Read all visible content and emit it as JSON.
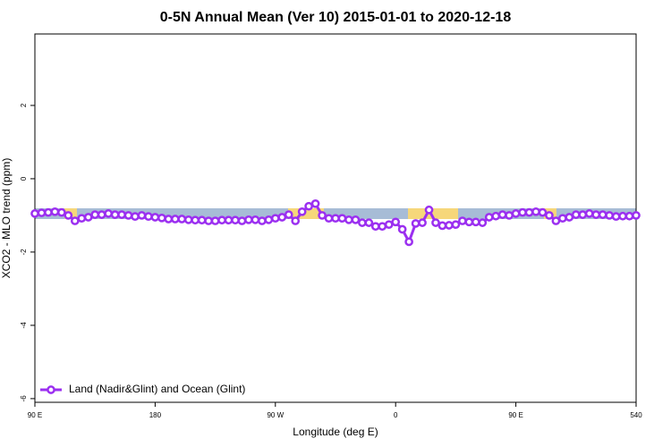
{
  "chart_data": {
    "type": "line",
    "title": "0-5N Annual Mean (Ver 10)   2015-01-01 to 2020-12-18",
    "x_label": "Longitude (deg E)",
    "y_label": "XCO2 - MLO trend (ppm)",
    "x": [
      90,
      95,
      100,
      105,
      110,
      115,
      120,
      125,
      130,
      135,
      140,
      145,
      150,
      155,
      160,
      165,
      170,
      175,
      180,
      185,
      190,
      195,
      200,
      205,
      210,
      215,
      220,
      225,
      230,
      235,
      240,
      245,
      250,
      255,
      260,
      265,
      270,
      275,
      280,
      285,
      290,
      295,
      300,
      305,
      310,
      315,
      320,
      325,
      330,
      335,
      340,
      345,
      350,
      355,
      360,
      365,
      370,
      375,
      380,
      385,
      390,
      395,
      400,
      405,
      410,
      415,
      420,
      425,
      430,
      435,
      440,
      445,
      450,
      455,
      460,
      465,
      470,
      475,
      480,
      485,
      490,
      495,
      500,
      505,
      510,
      515,
      520,
      525,
      530,
      535,
      540
    ],
    "series": [
      {
        "name": "Land (Nadir&Glint) and Ocean (Glint)",
        "color": "#9b2ff0",
        "values": [
          -0.95,
          -0.93,
          -0.92,
          -0.9,
          -0.92,
          -1.0,
          -1.15,
          -1.08,
          -1.05,
          -0.98,
          -0.98,
          -0.95,
          -0.98,
          -0.98,
          -1.0,
          -1.03,
          -1.0,
          -1.03,
          -1.05,
          -1.07,
          -1.1,
          -1.1,
          -1.1,
          -1.12,
          -1.13,
          -1.13,
          -1.15,
          -1.15,
          -1.13,
          -1.13,
          -1.13,
          -1.15,
          -1.12,
          -1.12,
          -1.15,
          -1.12,
          -1.08,
          -1.05,
          -0.98,
          -1.15,
          -0.9,
          -0.75,
          -0.68,
          -1.0,
          -1.08,
          -1.08,
          -1.08,
          -1.12,
          -1.12,
          -1.2,
          -1.2,
          -1.3,
          -1.3,
          -1.25,
          -1.18,
          -1.38,
          -1.72,
          -1.22,
          -1.2,
          -0.85,
          -1.2,
          -1.28,
          -1.27,
          -1.25,
          -1.15,
          -1.18,
          -1.18,
          -1.2,
          -1.05,
          -1.02,
          -0.98,
          -1.0,
          -0.95,
          -0.92,
          -0.92,
          -0.9,
          -0.92,
          -1.0,
          -1.15,
          -1.08,
          -1.05,
          -0.98,
          -0.98,
          -0.95,
          -0.98,
          -0.98,
          -1.0,
          -1.03,
          -1.02,
          -1.02,
          -1.0
        ]
      }
    ],
    "xlim": [
      90,
      540
    ],
    "xticks": [
      {
        "value": 90,
        "label": "90 E"
      },
      180,
      {
        "value": 270,
        "label": "90 W"
      },
      {
        "value": 360,
        "label": "0"
      },
      {
        "value": 450,
        "label": "90 E"
      },
      540
    ],
    "ylim": [
      -6.1,
      3.95
    ],
    "yticks": [
      2,
      0,
      -2,
      -4,
      -6
    ],
    "legend": "bottom-left"
  }
}
